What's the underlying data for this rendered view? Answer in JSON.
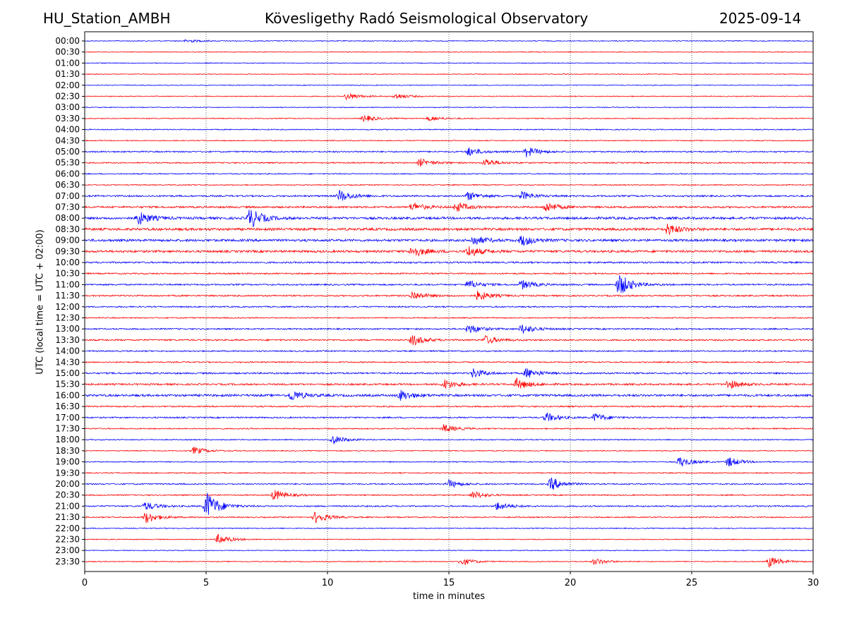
{
  "header": {
    "station": "HU_Station_AMBH",
    "observatory": "Kövesligethy Radó Seismological Observatory",
    "date": "2025-09-14"
  },
  "chart_data": {
    "type": "line",
    "title": "Kövesligethy Radó Seismological Observatory",
    "xlabel": "time in minutes",
    "ylabel": "UTC (local time = UTC + 02:00)",
    "xlim": [
      0,
      30
    ],
    "xticks": [
      0,
      5,
      10,
      15,
      20,
      25,
      30
    ],
    "grid": "vertical dotted at 5-minute ticks",
    "rows": [
      "00:00",
      "00:30",
      "01:00",
      "01:30",
      "02:00",
      "02:30",
      "03:00",
      "03:30",
      "04:00",
      "04:30",
      "05:00",
      "05:30",
      "06:00",
      "06:30",
      "07:00",
      "07:30",
      "08:00",
      "08:30",
      "09:00",
      "09:30",
      "10:00",
      "10:30",
      "11:00",
      "11:30",
      "12:00",
      "12:30",
      "13:00",
      "13:30",
      "14:00",
      "14:30",
      "15:00",
      "15:30",
      "16:00",
      "16:30",
      "17:00",
      "17:30",
      "18:00",
      "18:30",
      "19:00",
      "19:30",
      "20:00",
      "20:30",
      "21:00",
      "21:30",
      "22:00",
      "22:30",
      "23:00",
      "23:30"
    ],
    "colors": [
      "#0000ff",
      "#ff0000"
    ],
    "noise_levels": [
      0.12,
      0.08,
      0.08,
      0.06,
      0.08,
      0.12,
      0.1,
      0.15,
      0.18,
      0.15,
      0.35,
      0.28,
      0.22,
      0.18,
      0.45,
      0.55,
      0.75,
      0.8,
      0.75,
      0.7,
      0.45,
      0.35,
      0.4,
      0.4,
      0.3,
      0.25,
      0.35,
      0.4,
      0.3,
      0.3,
      0.45,
      0.5,
      0.7,
      0.35,
      0.35,
      0.25,
      0.2,
      0.15,
      0.18,
      0.2,
      0.3,
      0.25,
      0.35,
      0.25,
      0.15,
      0.12,
      0.1,
      0.12
    ],
    "events": [
      {
        "row": "00:00",
        "minute": 4.2,
        "amplitude": 0.4
      },
      {
        "row": "02:30",
        "minute": 10.8,
        "amplitude": 0.9
      },
      {
        "row": "02:30",
        "minute": 12.8,
        "amplitude": 0.7
      },
      {
        "row": "03:30",
        "minute": 11.5,
        "amplitude": 0.8
      },
      {
        "row": "03:30",
        "minute": 14.2,
        "amplitude": 0.6
      },
      {
        "row": "05:00",
        "minute": 15.8,
        "amplitude": 1.0
      },
      {
        "row": "05:00",
        "minute": 18.2,
        "amplitude": 1.2
      },
      {
        "row": "05:30",
        "minute": 13.8,
        "amplitude": 1.0
      },
      {
        "row": "05:30",
        "minute": 16.5,
        "amplitude": 0.9
      },
      {
        "row": "07:00",
        "minute": 10.5,
        "amplitude": 1.4
      },
      {
        "row": "07:00",
        "minute": 15.8,
        "amplitude": 1.0
      },
      {
        "row": "07:00",
        "minute": 18.0,
        "amplitude": 1.0
      },
      {
        "row": "07:30",
        "minute": 13.5,
        "amplitude": 1.0
      },
      {
        "row": "07:30",
        "minute": 15.3,
        "amplitude": 1.1
      },
      {
        "row": "07:30",
        "minute": 19.0,
        "amplitude": 1.2
      },
      {
        "row": "08:00",
        "minute": 2.2,
        "amplitude": 1.6
      },
      {
        "row": "08:00",
        "minute": 6.8,
        "amplitude": 2.4
      },
      {
        "row": "08:30",
        "minute": 24.0,
        "amplitude": 1.3
      },
      {
        "row": "09:00",
        "minute": 16.0,
        "amplitude": 1.2
      },
      {
        "row": "09:00",
        "minute": 18.0,
        "amplitude": 1.3
      },
      {
        "row": "09:30",
        "minute": 13.5,
        "amplitude": 1.4
      },
      {
        "row": "09:30",
        "minute": 15.8,
        "amplitude": 1.3
      },
      {
        "row": "11:00",
        "minute": 15.8,
        "amplitude": 1.0
      },
      {
        "row": "11:00",
        "minute": 18.0,
        "amplitude": 1.1
      },
      {
        "row": "11:00",
        "minute": 22.0,
        "amplitude": 2.8
      },
      {
        "row": "11:30",
        "minute": 13.5,
        "amplitude": 1.1
      },
      {
        "row": "11:30",
        "minute": 16.2,
        "amplitude": 1.2
      },
      {
        "row": "13:00",
        "minute": 15.8,
        "amplitude": 1.2
      },
      {
        "row": "13:00",
        "minute": 18.0,
        "amplitude": 1.2
      },
      {
        "row": "13:30",
        "minute": 13.5,
        "amplitude": 1.3
      },
      {
        "row": "13:30",
        "minute": 16.5,
        "amplitude": 1.0
      },
      {
        "row": "15:00",
        "minute": 16.0,
        "amplitude": 1.1
      },
      {
        "row": "15:00",
        "minute": 18.2,
        "amplitude": 1.2
      },
      {
        "row": "15:30",
        "minute": 14.8,
        "amplitude": 1.2
      },
      {
        "row": "15:30",
        "minute": 17.8,
        "amplitude": 1.3
      },
      {
        "row": "15:30",
        "minute": 26.5,
        "amplitude": 1.1
      },
      {
        "row": "16:00",
        "minute": 8.5,
        "amplitude": 1.3
      },
      {
        "row": "16:00",
        "minute": 13.0,
        "amplitude": 1.2
      },
      {
        "row": "17:00",
        "minute": 19.0,
        "amplitude": 1.1
      },
      {
        "row": "17:00",
        "minute": 21.0,
        "amplitude": 1.0
      },
      {
        "row": "17:30",
        "minute": 14.8,
        "amplitude": 1.0
      },
      {
        "row": "18:00",
        "minute": 10.2,
        "amplitude": 1.1
      },
      {
        "row": "18:30",
        "minute": 4.5,
        "amplitude": 0.9
      },
      {
        "row": "19:00",
        "minute": 24.5,
        "amplitude": 1.3
      },
      {
        "row": "19:00",
        "minute": 26.5,
        "amplitude": 1.2
      },
      {
        "row": "20:00",
        "minute": 19.2,
        "amplitude": 1.6
      },
      {
        "row": "20:00",
        "minute": 15.0,
        "amplitude": 0.9
      },
      {
        "row": "20:30",
        "minute": 7.8,
        "amplitude": 1.3
      },
      {
        "row": "20:30",
        "minute": 16.0,
        "amplitude": 0.9
      },
      {
        "row": "21:00",
        "minute": 5.0,
        "amplitude": 3.6
      },
      {
        "row": "21:00",
        "minute": 17.0,
        "amplitude": 1.0
      },
      {
        "row": "21:00",
        "minute": 2.5,
        "amplitude": 1.0
      },
      {
        "row": "21:30",
        "minute": 2.5,
        "amplitude": 1.4
      },
      {
        "row": "21:30",
        "minute": 9.5,
        "amplitude": 1.4
      },
      {
        "row": "22:30",
        "minute": 5.5,
        "amplitude": 1.2
      },
      {
        "row": "23:30",
        "minute": 15.5,
        "amplitude": 0.9
      },
      {
        "row": "23:30",
        "minute": 21.0,
        "amplitude": 0.8
      },
      {
        "row": "23:30",
        "minute": 28.2,
        "amplitude": 1.3
      }
    ]
  }
}
